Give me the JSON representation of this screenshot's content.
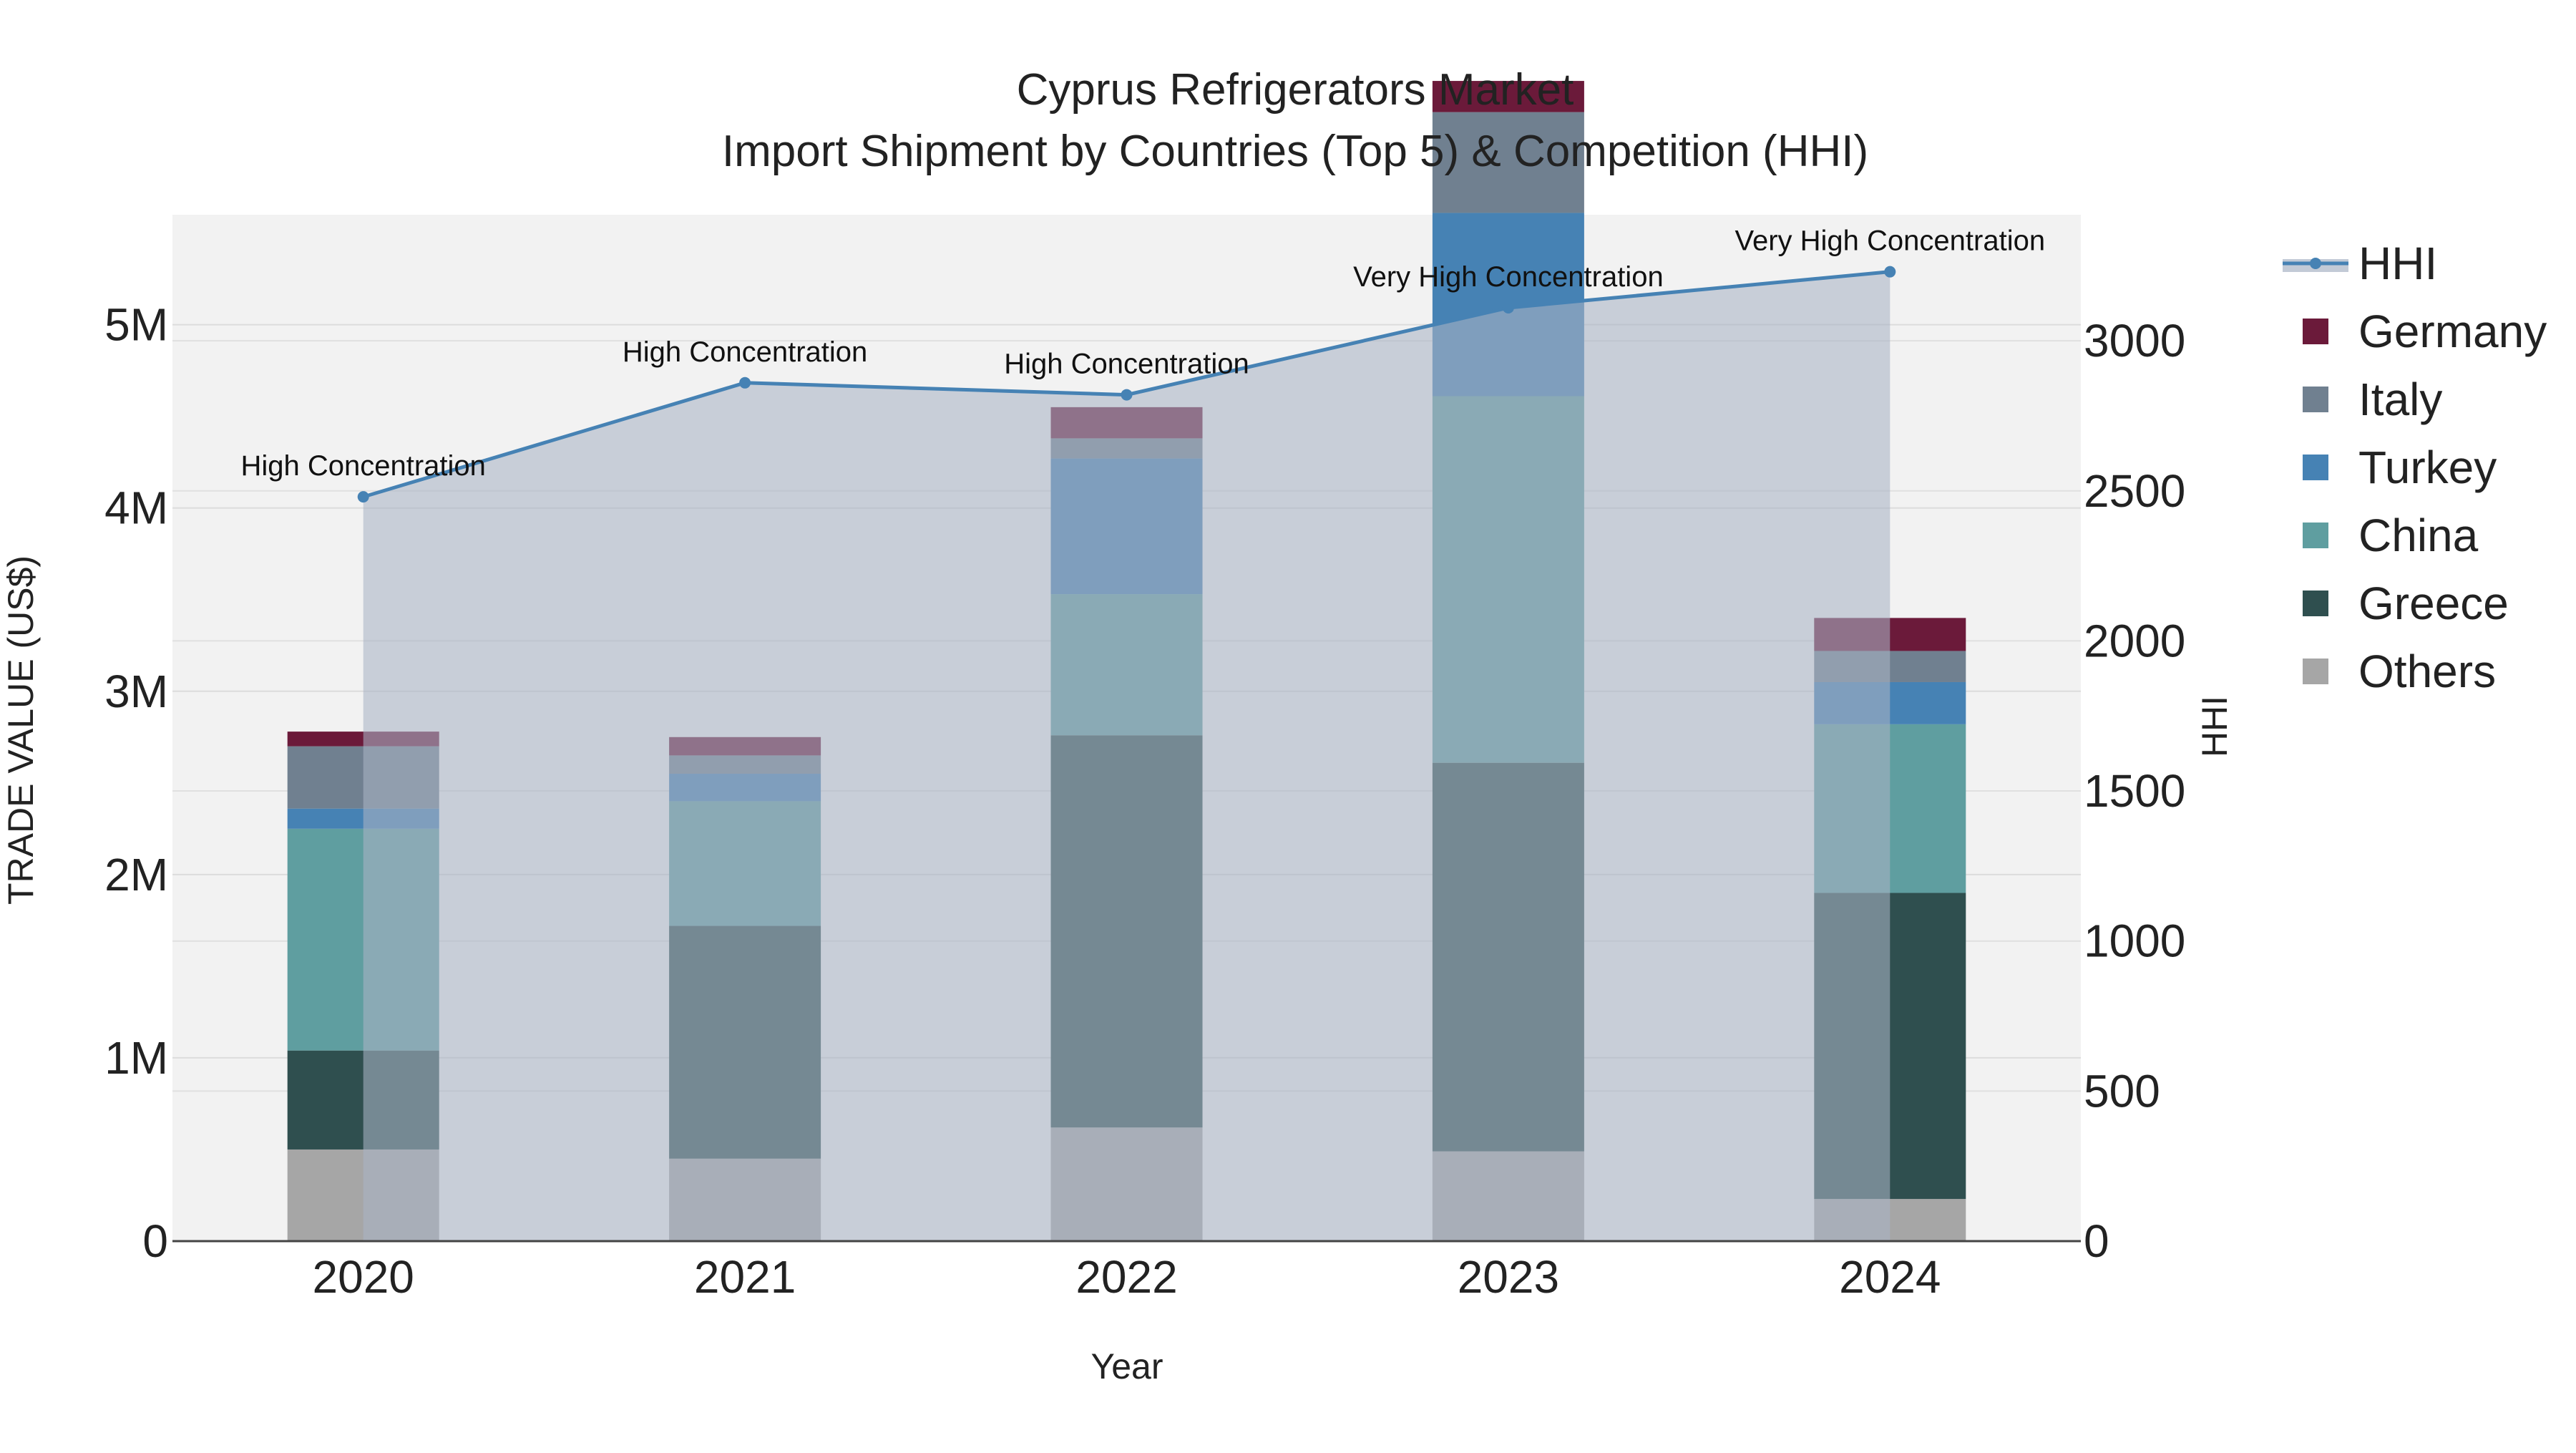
{
  "chart_data": {
    "type": "bar",
    "stacked": true,
    "title": "Cyprus Refrigerators Market",
    "subtitle": "Import Shipment by Countries (Top 5) & Competition (HHI)",
    "xlabel": "Year",
    "ylabel": "TRADE VALUE (US$)",
    "y2label": "HHI",
    "categories": [
      "2020",
      "2021",
      "2022",
      "2023",
      "2024"
    ],
    "ylim": [
      0,
      5600000
    ],
    "y2lim": [
      0,
      3420
    ],
    "yticks": [
      0,
      1000000,
      2000000,
      3000000,
      4000000,
      5000000
    ],
    "ytick_labels": [
      "0",
      "1M",
      "2M",
      "3M",
      "4M",
      "5M"
    ],
    "y2ticks": [
      0,
      500,
      1000,
      1500,
      2000,
      2500,
      3000
    ],
    "y2tick_labels": [
      "0",
      "500",
      "1000",
      "1500",
      "2000",
      "2500",
      "3000"
    ],
    "series": [
      {
        "name": "Others",
        "color": "#a6a6a6",
        "values": [
          500000,
          450000,
          620000,
          490000,
          230000
        ]
      },
      {
        "name": "Greece",
        "color": "#2f4f4f",
        "values": [
          540000,
          1270000,
          2140000,
          2120000,
          1670000
        ]
      },
      {
        "name": "China",
        "color": "#5f9ea0",
        "values": [
          1210000,
          680000,
          770000,
          2000000,
          920000
        ]
      },
      {
        "name": "Turkey",
        "color": "#4682b4",
        "values": [
          110000,
          150000,
          740000,
          1000000,
          230000
        ]
      },
      {
        "name": "Italy",
        "color": "#708090",
        "values": [
          340000,
          100000,
          110000,
          550000,
          170000
        ]
      },
      {
        "name": "Germany",
        "color": "#6b1a3a",
        "values": [
          80000,
          100000,
          170000,
          170000,
          180000
        ]
      }
    ],
    "hhi": {
      "name": "HHI",
      "color": "#4682b4",
      "values": [
        2480,
        2860,
        2820,
        3110,
        3230
      ],
      "labels": [
        "High Concentration",
        "High Concentration",
        "High Concentration",
        "Very High Concentration",
        "Very High Concentration"
      ]
    },
    "legend": {
      "position": "right",
      "items": [
        "HHI",
        "Germany",
        "Italy",
        "Turkey",
        "China",
        "Greece",
        "Others"
      ]
    }
  }
}
